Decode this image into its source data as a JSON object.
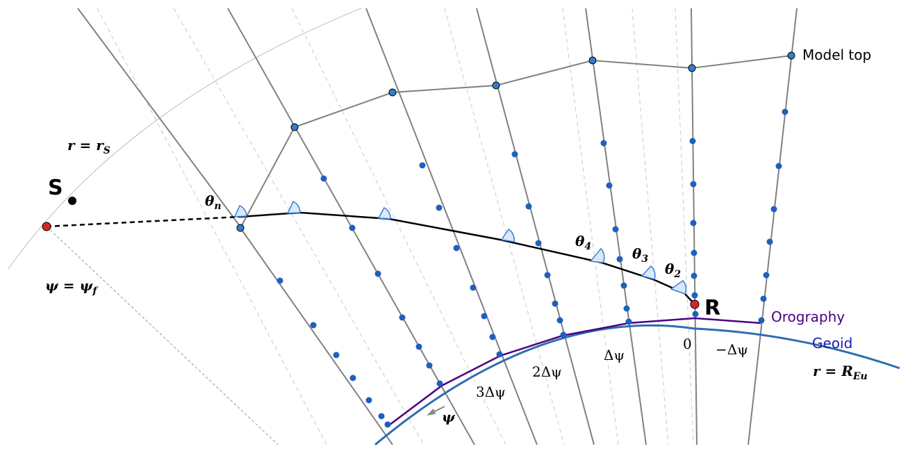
{
  "labels": {
    "model_top": "Model top",
    "r_s": {
      "main": "r = r",
      "sub": "S"
    },
    "source": "S",
    "theta_n": {
      "main": "θ",
      "sub": "n"
    },
    "psi_f": {
      "main": "ψ = ψ",
      "sub": "f"
    },
    "theta_4": {
      "main": "θ",
      "sub": "4"
    },
    "theta_3": {
      "main": "θ",
      "sub": "3"
    },
    "theta_2": {
      "main": "θ",
      "sub": "2"
    },
    "receiver": "R",
    "orography": "Orography",
    "geoid": "Geoid",
    "r_eu": {
      "main": "r = R",
      "sub": "Eu"
    },
    "zero": "0",
    "minus_dpsi": "−Δψ",
    "dpsi": "Δψ",
    "two_dpsi": "2Δψ",
    "three_dpsi": "3Δψ",
    "psi": "ψ"
  }
}
